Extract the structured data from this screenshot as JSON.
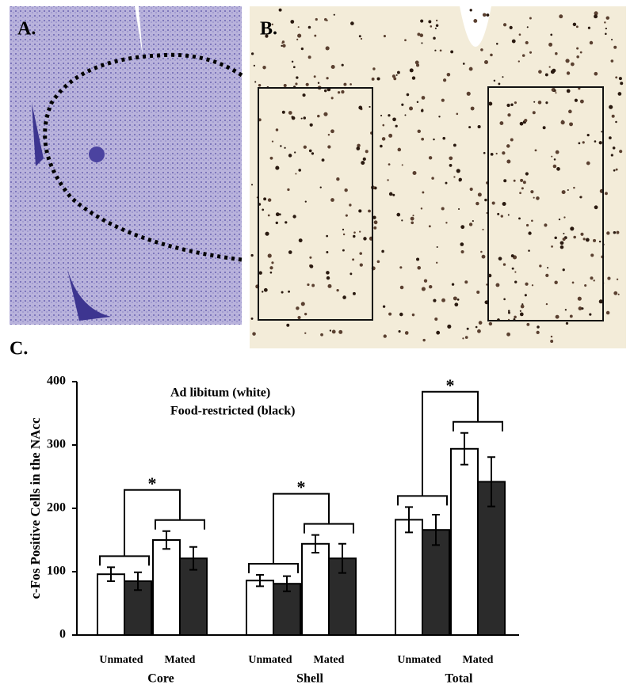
{
  "panel_labels": [
    "A.",
    "B.",
    "C."
  ],
  "chart_data": {
    "type": "grouped-bar",
    "y_label": "c-Fos Positive Cells in the NAcc",
    "groups": [
      "Core",
      "Shell",
      "Total"
    ],
    "categories": [
      "Unmated",
      "Mated",
      "Unmated",
      "Mated",
      "Unmated",
      "Mated"
    ],
    "series": [
      {
        "name": "Ad libitum (white)",
        "color": "#ffffff",
        "values": [
          96,
          150,
          86,
          144,
          182,
          294
        ],
        "errors": [
          11,
          14,
          9,
          14,
          20,
          25
        ]
      },
      {
        "name": "Food-restricted (black)",
        "color": "#2b2b2b",
        "values": [
          85,
          121,
          81,
          121,
          166,
          242
        ],
        "errors": [
          14,
          18,
          12,
          23,
          24,
          39
        ]
      }
    ],
    "significance": [
      "*",
      "*",
      "*"
    ],
    "ylim": [
      0,
      400
    ],
    "yticks": [
      0,
      100,
      200,
      300,
      400
    ]
  }
}
